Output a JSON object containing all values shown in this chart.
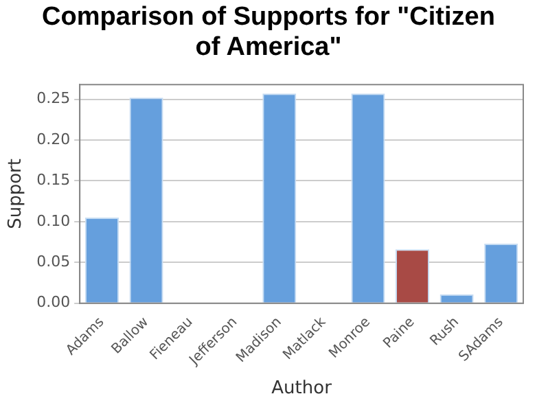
{
  "chart_data": {
    "type": "bar",
    "title": "Comparison of Supports for \"Citizen of America\"",
    "xlabel": "Author",
    "ylabel": "Support",
    "categories": [
      "Adams",
      "Ballow",
      "Fieneau",
      "Jefferson",
      "Madison",
      "Matlack",
      "Monroe",
      "Paine",
      "Rush",
      "SAdams"
    ],
    "values": [
      0.105,
      0.252,
      0,
      0,
      0.257,
      0,
      0.257,
      0.066,
      0.011,
      0.073
    ],
    "colors": [
      "#659fdd",
      "#659fdd",
      "#659fdd",
      "#659fdd",
      "#659fdd",
      "#659fdd",
      "#659fdd",
      "#a84a45",
      "#659fdd",
      "#659fdd"
    ],
    "ylim": [
      0,
      0.268
    ],
    "yticks": [
      {
        "value": 0,
        "label": "0.00"
      },
      {
        "value": 0.05,
        "label": "0.05"
      },
      {
        "value": 0.1,
        "label": "0.10"
      },
      {
        "value": 0.15,
        "label": "0.15"
      },
      {
        "value": 0.2,
        "label": "0.20"
      },
      {
        "value": 0.25,
        "label": "0.25"
      }
    ],
    "grid": "y"
  }
}
